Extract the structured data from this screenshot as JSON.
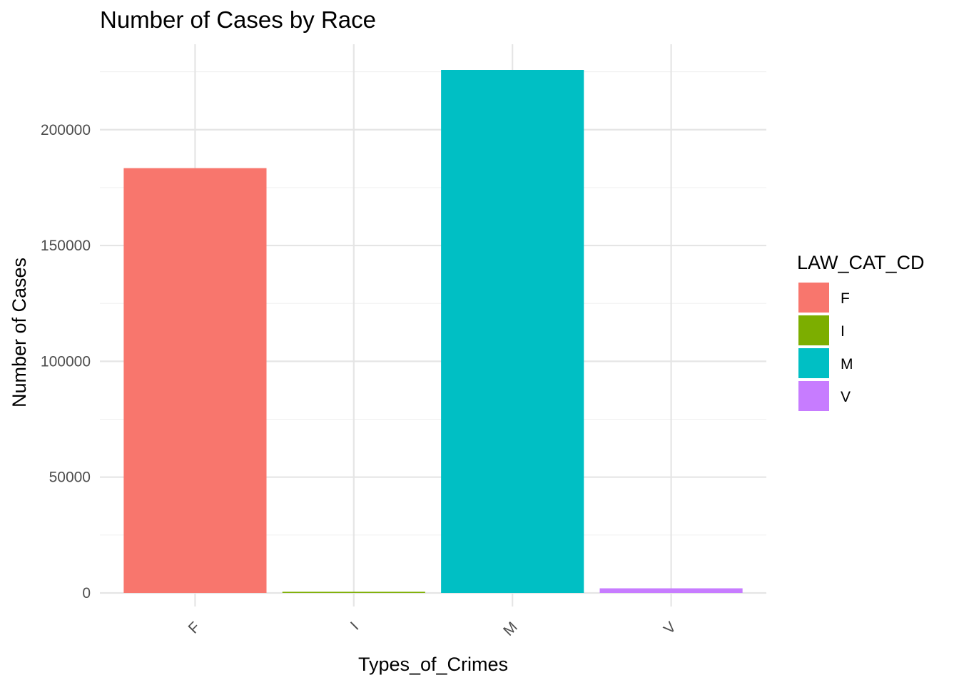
{
  "chart_data": {
    "type": "bar",
    "title": "Number of Cases by Race",
    "xlabel": "Types_of_Crimes",
    "ylabel": "Number of Cases",
    "categories": [
      "F",
      "I",
      "M",
      "V"
    ],
    "values": [
      183400,
      500,
      225800,
      2000
    ],
    "ylim": [
      0,
      225800
    ],
    "yticks": [
      0,
      50000,
      100000,
      150000,
      200000
    ],
    "ytick_labels": [
      "0",
      "50000",
      "100000",
      "150000",
      "200000"
    ],
    "grid": true,
    "legend": {
      "title": "LAW_CAT_CD",
      "placement": "right",
      "entries": [
        "F",
        "I",
        "M",
        "V"
      ]
    },
    "colors": {
      "F": "#F8766D",
      "I": "#7CAE00",
      "M": "#00BFC4",
      "V": "#C77CFF"
    }
  }
}
